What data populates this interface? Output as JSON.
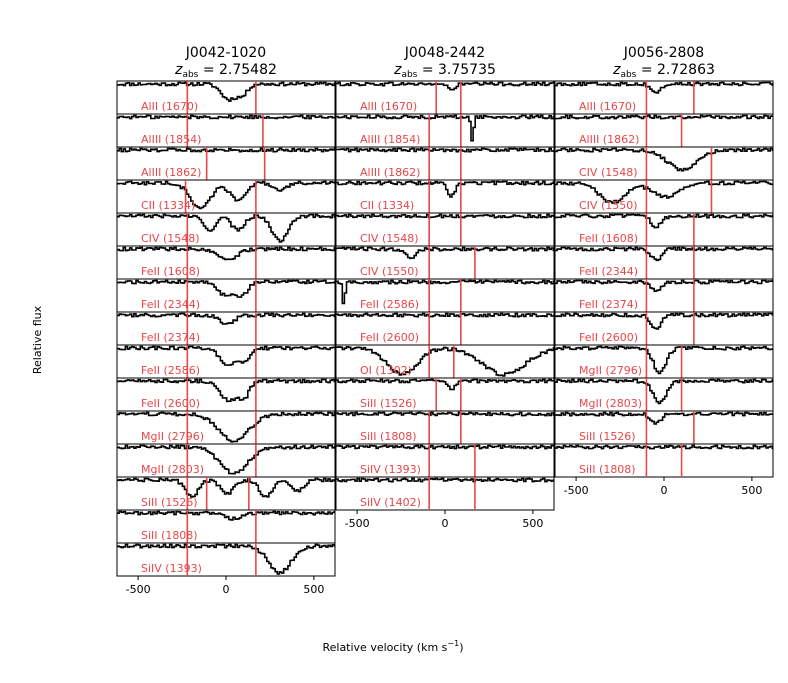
{
  "figure": {
    "xlabel_main": "Relative velocity (km s",
    "xlabel_sup": "−1",
    "xlabel_close": ")",
    "ylabel": "Relative flux"
  },
  "chart_data": [
    {
      "type": "line",
      "title_line1": "J0042-1020",
      "title_line2_prefix": "z",
      "title_line2_sub": "abs",
      "title_line2_value": " = 2.75482",
      "xlim": [
        -620,
        620
      ],
      "xticks": [
        -500,
        0,
        500
      ],
      "xtick_labels": [
        "-500",
        "0",
        "500"
      ],
      "line_color": "#e8474a",
      "series_color": "#000000",
      "panels": [
        {
          "label": "AlII (1670)",
          "lines": [
            -220,
            170
          ],
          "absorptions": [
            {
              "v": 10,
              "depth": 0.55,
              "width": 60
            },
            {
              "v": 90,
              "depth": 0.35,
              "width": 40
            }
          ]
        },
        {
          "label": "AlIII (1854)",
          "lines": [
            -220,
            210
          ],
          "absorptions": []
        },
        {
          "label": "AlIII (1862)",
          "lines": [
            -110,
            220
          ],
          "absorptions": []
        },
        {
          "label": "CII (1334)",
          "lines": [
            -230,
            170
          ],
          "absorptions": [
            {
              "v": -150,
              "depth": 0.9,
              "width": 80
            },
            {
              "v": 60,
              "depth": 0.6,
              "width": 60
            },
            {
              "v": 300,
              "depth": 0.3,
              "width": 50
            }
          ]
        },
        {
          "label": "CIV (1548)",
          "lines": [
            -220,
            170
          ],
          "absorptions": [
            {
              "v": -100,
              "depth": 0.5,
              "width": 50
            },
            {
              "v": 60,
              "depth": 0.5,
              "width": 50
            },
            {
              "v": 300,
              "depth": 0.9,
              "width": 60
            }
          ]
        },
        {
          "label": "FeII (1608)",
          "lines": [
            -220,
            170
          ],
          "absorptions": [
            {
              "v": 0,
              "depth": 0.4,
              "width": 80
            }
          ]
        },
        {
          "label": "FeII (2344)",
          "lines": [
            -220,
            170
          ],
          "absorptions": [
            {
              "v": 0,
              "depth": 0.5,
              "width": 70
            },
            {
              "v": 90,
              "depth": 0.4,
              "width": 40
            }
          ]
        },
        {
          "label": "FeII (2374)",
          "lines": [
            -220,
            170
          ],
          "absorptions": [
            {
              "v": 0,
              "depth": 0.3,
              "width": 60
            }
          ]
        },
        {
          "label": "FeII (2586)",
          "lines": [
            -220,
            170
          ],
          "absorptions": [
            {
              "v": 10,
              "depth": 0.6,
              "width": 70
            },
            {
              "v": 100,
              "depth": 0.4,
              "width": 40
            }
          ]
        },
        {
          "label": "FeII (2600)",
          "lines": [
            -220,
            170
          ],
          "absorptions": [
            {
              "v": 10,
              "depth": 0.7,
              "width": 70
            },
            {
              "v": 100,
              "depth": 0.5,
              "width": 40
            }
          ]
        },
        {
          "label": "MgII (2796)",
          "lines": [
            -220,
            170
          ],
          "absorptions": [
            {
              "v": 40,
              "depth": 0.95,
              "width": 120
            }
          ]
        },
        {
          "label": "MgII (2803)",
          "lines": [
            -220,
            170
          ],
          "absorptions": [
            {
              "v": 40,
              "depth": 0.95,
              "width": 110
            }
          ]
        },
        {
          "label": "SiII (1526)",
          "lines": [
            -220,
            -110,
            130
          ],
          "absorptions": [
            {
              "v": -200,
              "depth": 0.6,
              "width": 50
            },
            {
              "v": 0,
              "depth": 0.5,
              "width": 50
            },
            {
              "v": 220,
              "depth": 0.6,
              "width": 50
            },
            {
              "v": 400,
              "depth": 0.4,
              "width": 50
            }
          ]
        },
        {
          "label": "SiII (1808)",
          "lines": [
            -220,
            170
          ],
          "absorptions": [
            {
              "v": 40,
              "depth": 0.2,
              "width": 70
            }
          ]
        },
        {
          "label": "SiIV (1393)",
          "lines": [
            -220,
            170
          ],
          "absorptions": [
            {
              "v": 300,
              "depth": 0.95,
              "width": 90
            }
          ]
        }
      ]
    },
    {
      "type": "line",
      "title_line1": "J0048-2442",
      "title_line2_prefix": "z",
      "title_line2_sub": "abs",
      "title_line2_value": " = 3.75735",
      "xlim": [
        -620,
        620
      ],
      "xticks": [
        -500,
        0,
        500
      ],
      "xtick_labels": [
        "-500",
        "0",
        "500"
      ],
      "line_color": "#e8474a",
      "series_color": "#000000",
      "panels": [
        {
          "label": "AlII (1670)",
          "lines": [
            -50,
            90
          ],
          "absorptions": [
            {
              "v": 30,
              "depth": 0.2,
              "width": 30
            }
          ]
        },
        {
          "label": "AlIII (1854)",
          "lines": [
            -90,
            90
          ],
          "absorptions": [
            {
              "v": 150,
              "depth": 0.9,
              "width": 10
            }
          ]
        },
        {
          "label": "AlIII (1862)",
          "lines": [
            -90,
            90
          ],
          "absorptions": []
        },
        {
          "label": "CII (1334)",
          "lines": [
            -90,
            90
          ],
          "absorptions": [
            {
              "v": 30,
              "depth": 0.5,
              "width": 30
            }
          ]
        },
        {
          "label": "CIV (1548)",
          "lines": [
            -90,
            90
          ],
          "absorptions": []
        },
        {
          "label": "CIV (1550)",
          "lines": [
            -90,
            170
          ],
          "absorptions": [
            {
              "v": -200,
              "depth": 0.3,
              "width": 40
            }
          ]
        },
        {
          "label": "FeII (2586)",
          "lines": [
            -90,
            90
          ],
          "absorptions": [
            {
              "v": -580,
              "depth": 0.95,
              "width": 8
            }
          ]
        },
        {
          "label": "FeII (2600)",
          "lines": [
            -90,
            90
          ],
          "absorptions": []
        },
        {
          "label": "OI (1302)",
          "lines": [
            -90,
            50
          ],
          "absorptions": [
            {
              "v": -250,
              "depth": 0.95,
              "width": 120
            },
            {
              "v": 330,
              "depth": 0.95,
              "width": 170
            }
          ]
        },
        {
          "label": "SiII (1526)",
          "lines": [
            -50,
            90
          ],
          "absorptions": [
            {
              "v": 30,
              "depth": 0.3,
              "width": 30
            }
          ]
        },
        {
          "label": "SiII (1808)",
          "lines": [
            -90,
            90
          ],
          "absorptions": []
        },
        {
          "label": "SiIV (1393)",
          "lines": [
            -90,
            170
          ],
          "absorptions": []
        },
        {
          "label": "SiIV (1402)",
          "lines": [
            -90,
            170
          ],
          "absorptions": []
        }
      ]
    },
    {
      "type": "line",
      "title_line1": "J0056-2808",
      "title_line2_prefix": "z",
      "title_line2_sub": "abs",
      "title_line2_value": " = 2.72863",
      "xlim": [
        -620,
        620
      ],
      "xticks": [
        -500,
        0,
        500
      ],
      "xtick_labels": [
        "-500",
        "0",
        "500"
      ],
      "line_color": "#e8474a",
      "series_color": "#000000",
      "panels": [
        {
          "label": "AlII (1670)",
          "lines": [
            -100,
            170
          ],
          "absorptions": [
            {
              "v": -50,
              "depth": 0.3,
              "width": 40
            }
          ]
        },
        {
          "label": "AlIII (1862)",
          "lines": [
            -100,
            100
          ],
          "absorptions": []
        },
        {
          "label": "CIV (1548)",
          "lines": [
            -100,
            270
          ],
          "absorptions": [
            {
              "v": 100,
              "depth": 0.7,
              "width": 120
            }
          ]
        },
        {
          "label": "CIV (1550)",
          "lines": [
            -100,
            270
          ],
          "absorptions": [
            {
              "v": -300,
              "depth": 0.7,
              "width": 100
            },
            {
              "v": 0,
              "depth": 0.5,
              "width": 100
            }
          ]
        },
        {
          "label": "FeII (1608)",
          "lines": [
            -100,
            170
          ],
          "absorptions": [
            {
              "v": -50,
              "depth": 0.4,
              "width": 40
            }
          ]
        },
        {
          "label": "FeII (2344)",
          "lines": [
            -100,
            170
          ],
          "absorptions": [
            {
              "v": -50,
              "depth": 0.4,
              "width": 40
            }
          ]
        },
        {
          "label": "FeII (2374)",
          "lines": [
            -100,
            170
          ],
          "absorptions": [
            {
              "v": -50,
              "depth": 0.3,
              "width": 40
            }
          ]
        },
        {
          "label": "FeII (2600)",
          "lines": [
            -100,
            170
          ],
          "absorptions": [
            {
              "v": -50,
              "depth": 0.5,
              "width": 40
            }
          ]
        },
        {
          "label": "MgII (2796)",
          "lines": [
            -100,
            100
          ],
          "absorptions": [
            {
              "v": -30,
              "depth": 0.9,
              "width": 50
            }
          ]
        },
        {
          "label": "MgII (2803)",
          "lines": [
            -100,
            100
          ],
          "absorptions": [
            {
              "v": -30,
              "depth": 0.8,
              "width": 50
            }
          ]
        },
        {
          "label": "SiII (1526)",
          "lines": [
            -100,
            170
          ],
          "absorptions": [
            {
              "v": -50,
              "depth": 0.3,
              "width": 40
            }
          ]
        },
        {
          "label": "SiII (1808)",
          "lines": [
            -100,
            100
          ],
          "absorptions": []
        }
      ]
    }
  ]
}
